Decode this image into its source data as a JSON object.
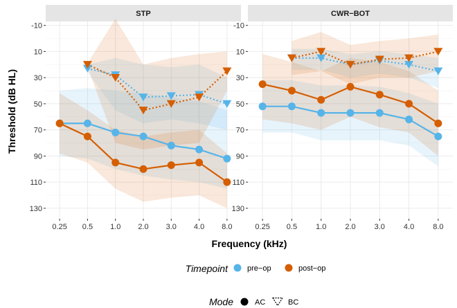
{
  "chart_data": {
    "type": "line",
    "x_label": "Frequency (kHz)",
    "y_label": "Threshold (dB HL)",
    "y_ticks": [
      "-10",
      "10",
      "30",
      "50",
      "70",
      "90",
      "110",
      "130"
    ],
    "y_range": [
      -13,
      138
    ],
    "y_reversed": true,
    "x_categories": [
      "0.25",
      "0.5",
      "1.0",
      "2.0",
      "3.0",
      "4.0",
      "8.0"
    ],
    "grid": true,
    "legend_position": "bottom",
    "colors": {
      "pre_op": "#56B4E9",
      "post_op": "#D55E00"
    },
    "legend": {
      "timepoint": {
        "title": "Timepoint",
        "items": [
          "pre−op",
          "post−op"
        ]
      },
      "mode": {
        "title": "Mode",
        "items": [
          "AC",
          "BC"
        ]
      }
    },
    "panels": [
      {
        "title": "STP",
        "series": [
          {
            "timepoint": "pre-op",
            "mode": "AC",
            "x": [
              "0.25",
              "0.5",
              "1.0",
              "2.0",
              "3.0",
              "4.0",
              "8.0"
            ],
            "y": [
              65,
              65,
              72,
              75,
              82,
              85,
              92
            ],
            "ribbon_low": [
              40,
              38,
              40,
              42,
              45,
              48,
              55
            ],
            "ribbon_high": [
              90,
              92,
              100,
              105,
              108,
              110,
              115
            ]
          },
          {
            "timepoint": "post-op",
            "mode": "AC",
            "x": [
              "0.25",
              "0.5",
              "1.0",
              "2.0",
              "3.0",
              "4.0",
              "8.0"
            ],
            "y": [
              65,
              75,
              95,
              100,
              97,
              95,
              110
            ],
            "ribbon_low": [
              42,
              55,
              70,
              75,
              72,
              70,
              88
            ],
            "ribbon_high": [
              88,
              95,
              115,
              125,
              122,
              120,
              130
            ]
          },
          {
            "timepoint": "pre-op",
            "mode": "BC",
            "x": [
              "0.5",
              "1.0",
              "2.0",
              "3.0",
              "4.0",
              "8.0"
            ],
            "y": [
              23,
              28,
              45,
              44,
              43,
              50
            ],
            "ribbon_low": [
              20,
              15,
              20,
              22,
              20,
              30
            ],
            "ribbon_high": [
              26,
              55,
              65,
              62,
              65,
              70
            ]
          },
          {
            "timepoint": "post-op",
            "mode": "BC",
            "x": [
              "0.5",
              "1.0",
              "2.0",
              "3.0",
              "4.0",
              "8.0"
            ],
            "y": [
              20,
              30,
              55,
              50,
              45,
              25
            ],
            "ribbon_low": [
              19,
              -15,
              20,
              15,
              12,
              10
            ],
            "ribbon_high": [
              22,
              80,
              85,
              82,
              80,
              40
            ]
          }
        ]
      },
      {
        "title": "CWR−BOT",
        "series": [
          {
            "timepoint": "pre-op",
            "mode": "AC",
            "x": [
              "0.25",
              "0.5",
              "1.0",
              "2.0",
              "3.0",
              "4.0",
              "8.0"
            ],
            "y": [
              52,
              52,
              57,
              57,
              57,
              62,
              75
            ],
            "ribbon_low": [
              32,
              32,
              36,
              36,
              37,
              42,
              50
            ],
            "ribbon_high": [
              72,
              72,
              78,
              78,
              78,
              82,
              98
            ]
          },
          {
            "timepoint": "post-op",
            "mode": "AC",
            "x": [
              "0.25",
              "0.5",
              "1.0",
              "2.0",
              "3.0",
              "4.0",
              "8.0"
            ],
            "y": [
              35,
              40,
              47,
              37,
              43,
              50,
              65
            ],
            "ribbon_low": [
              12,
              18,
              25,
              15,
              18,
              25,
              40
            ],
            "ribbon_high": [
              62,
              65,
              70,
              60,
              68,
              72,
              90
            ]
          },
          {
            "timepoint": "pre-op",
            "mode": "BC",
            "x": [
              "0.5",
              "1.0",
              "2.0",
              "3.0",
              "4.0",
              "8.0"
            ],
            "y": [
              15,
              15,
              20,
              17,
              20,
              25
            ],
            "ribbon_low": [
              8,
              8,
              12,
              10,
              12,
              15
            ],
            "ribbon_high": [
              24,
              24,
              30,
              27,
              30,
              38
            ]
          },
          {
            "timepoint": "post-op",
            "mode": "BC",
            "x": [
              "0.5",
              "1.0",
              "2.0",
              "3.0",
              "4.0",
              "8.0"
            ],
            "y": [
              15,
              10,
              20,
              16,
              15,
              10
            ],
            "ribbon_low": [
              2,
              -5,
              5,
              2,
              0,
              -3
            ],
            "ribbon_high": [
              28,
              25,
              35,
              30,
              30,
              25
            ]
          }
        ]
      }
    ]
  }
}
